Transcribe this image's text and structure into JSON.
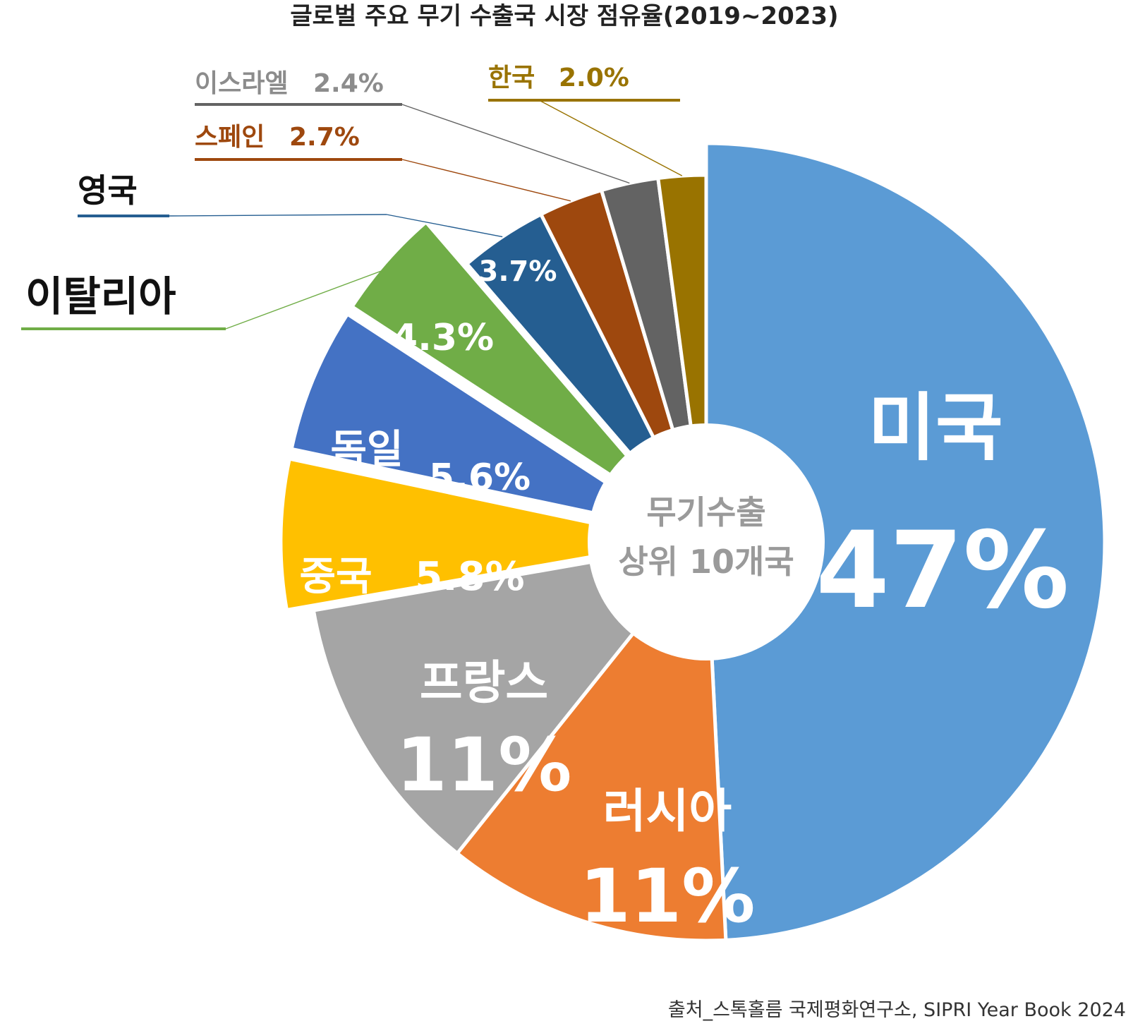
{
  "title": "글로벌 주요 무기 수출국 시장 점유율(2019~2023)",
  "center_label": [
    "무기수출",
    "상위 10개국"
  ],
  "source": "출처_스톡홀름 국제평화연구소, SIPRI Year Book 2024",
  "chart_data": {
    "type": "pie",
    "variant": "donut",
    "title": "글로벌 주요 무기 수출국 시장 점유율(2019~2023)",
    "slices": [
      {
        "name": "미국",
        "value": 47,
        "value_label": "47%",
        "color": "#5b9bd5"
      },
      {
        "name": "러시아",
        "value": 11,
        "value_label": "11%",
        "color": "#ed7d31"
      },
      {
        "name": "프랑스",
        "value": 11,
        "value_label": "11%",
        "color": "#a5a5a5"
      },
      {
        "name": "중국",
        "value": 5.8,
        "value_label": "5.8%",
        "color": "#ffc000"
      },
      {
        "name": "독일",
        "value": 5.6,
        "value_label": "5.6%",
        "color": "#4472c4"
      },
      {
        "name": "이탈리아",
        "value": 4.3,
        "value_label": "4.3%",
        "color": "#70ad47"
      },
      {
        "name": "영국",
        "value": 3.7,
        "value_label": "3.7%",
        "color": "#255e91"
      },
      {
        "name": "스페인",
        "value": 2.7,
        "value_label": "2.7%",
        "color": "#9e480e"
      },
      {
        "name": "이스라엘",
        "value": 2.4,
        "value_label": "2.4%",
        "color": "#636363"
      },
      {
        "name": "한국",
        "value": 2.0,
        "value_label": "2.0%",
        "color": "#997300"
      }
    ]
  }
}
